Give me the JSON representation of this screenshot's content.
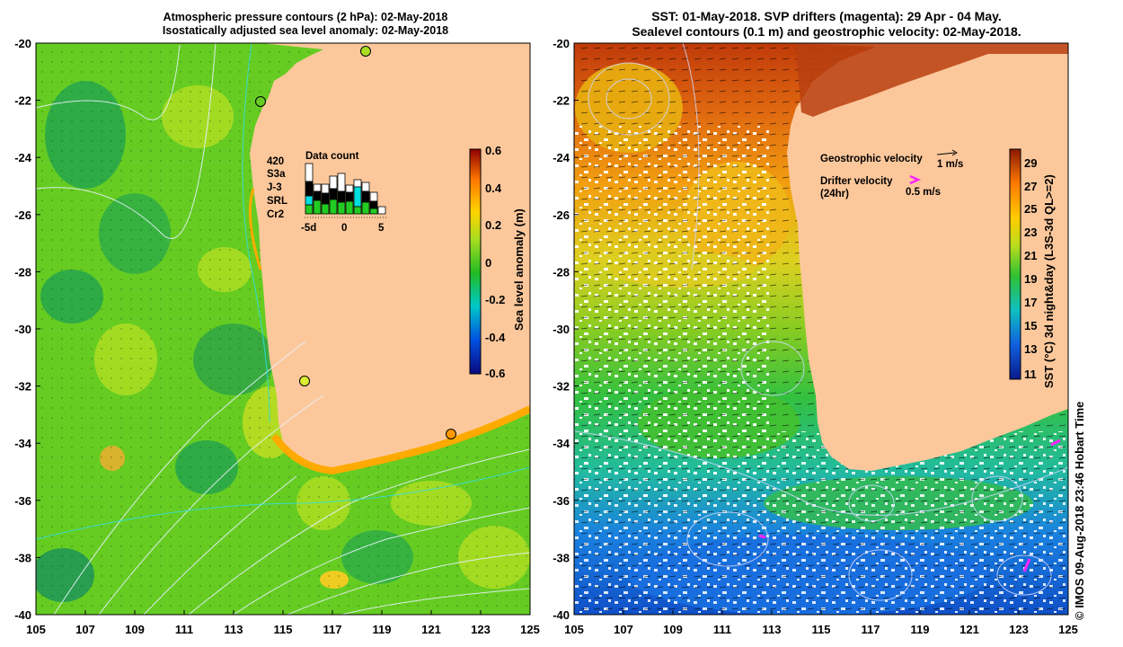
{
  "left_panel": {
    "title_line1": "Atmospheric pressure contours (2 hPa): 02-May-2018",
    "title_line2": "Isostatically adjusted sea level anomaly: 02-May-2018",
    "colorbar_label": "Sea level anomaly (m)",
    "colorbar_ticks": [
      "0.6",
      "0.4",
      "0.2",
      "0",
      "-0.2",
      "-0.4",
      "-0.6"
    ],
    "inset": {
      "title": "Data count",
      "count": "420",
      "missions": [
        {
          "name": "S3a",
          "color": "#ffffff"
        },
        {
          "name": "J-3",
          "color": "#000000"
        },
        {
          "name": "SRL",
          "color": "#00e6e6"
        },
        {
          "name": "Cr2",
          "color": "#22dd22"
        }
      ],
      "xticks": [
        "-5d",
        "0",
        "5"
      ]
    }
  },
  "right_panel": {
    "title_line1": "SST: 01-May-2018. SVP drifters (magenta): 29 Apr - 04 May.",
    "title_line2": "Sealevel contours (0.1 m) and geostrophic velocity: 02-May-2018.",
    "legend_geostrophic": "Geostrophic velocity",
    "legend_geostrophic_scale": "1 m/s",
    "legend_drifter_1": "Drifter velocity",
    "legend_drifter_2": "(24hr)",
    "legend_drifter_scale": "0.5 m/s",
    "colorbar_label": "SST (°C) 3d night&day (L3S-3d QL>=2)",
    "colorbar_ticks": [
      "29",
      "27",
      "25",
      "23",
      "21",
      "19",
      "17",
      "15",
      "13",
      "11"
    ]
  },
  "axes": {
    "y_ticks": [
      "-20",
      "-22",
      "-24",
      "-26",
      "-28",
      "-30",
      "-32",
      "-34",
      "-36",
      "-38",
      "-40"
    ],
    "x_ticks": [
      "105",
      "107",
      "109",
      "111",
      "113",
      "115",
      "117",
      "119",
      "121",
      "123",
      "125"
    ]
  },
  "credit": "© IMOS 09-Aug-2018 23:46 Hobart Time",
  "colors": {
    "land": "#fcc89b",
    "ocean_green": "#44cc22",
    "sst_red": "#c03a0a"
  }
}
